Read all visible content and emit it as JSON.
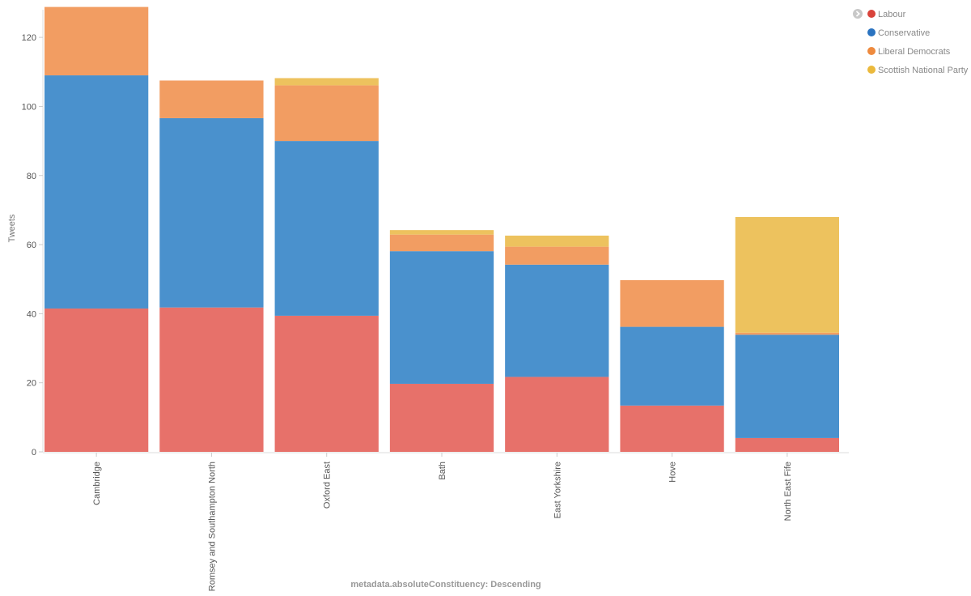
{
  "chart_data": {
    "type": "bar",
    "stacked": true,
    "xlabel": "metadata.absoluteConstituency: Descending",
    "ylabel": "Tweets",
    "ylim": [
      0,
      128
    ],
    "yticks": [
      0,
      20,
      40,
      60,
      80,
      100,
      120
    ],
    "categories": [
      "Cambridge",
      "Romsey and Southampton North",
      "Oxford East",
      "Bath",
      "East Yorkshire",
      "Hove",
      "North East Fife"
    ],
    "series": [
      {
        "name": "Labour",
        "color": "#e7716a",
        "values": [
          41.5,
          41.8,
          39.4,
          19.7,
          21.7,
          13.4,
          4
        ]
      },
      {
        "name": "Conservative",
        "color": "#4a91cd",
        "values": [
          67.5,
          54.8,
          50.6,
          38.4,
          32.5,
          22.8,
          29.9
        ]
      },
      {
        "name": "Liberal Democrats",
        "color": "#f29d62",
        "values": [
          19.8,
          10.9,
          16.1,
          4.8,
          5.2,
          13.5,
          0.6
        ]
      },
      {
        "name": "Scottish National Party",
        "color": "#edc25e",
        "values": [
          0,
          0,
          2.1,
          1.3,
          3.2,
          0,
          33.5
        ]
      }
    ],
    "legend_position": "top-right",
    "legend_dot_colors": [
      "#d9433b",
      "#2a73c0",
      "#ee8a3e",
      "#ebb93c"
    ],
    "grid": false
  }
}
